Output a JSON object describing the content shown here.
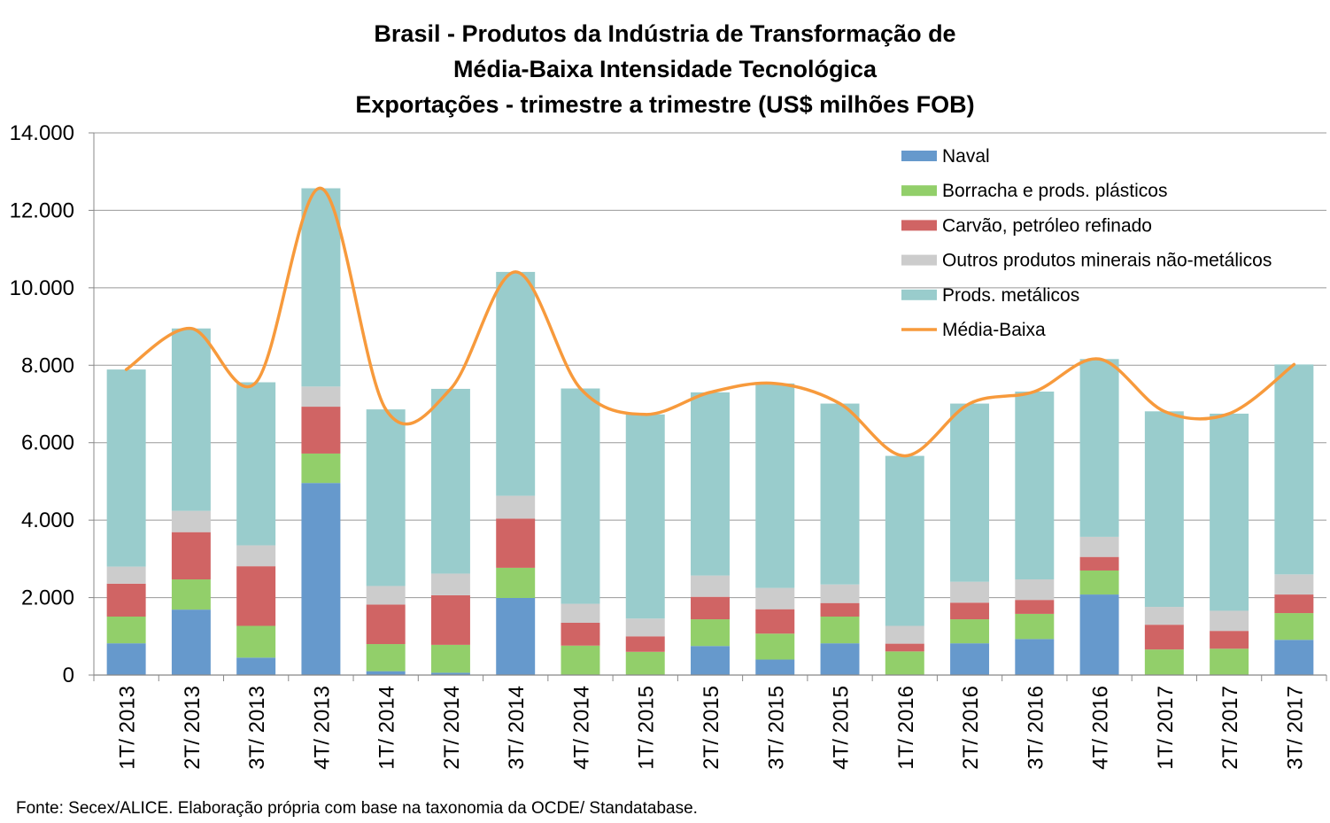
{
  "title_lines": [
    "Brasil - Produtos da Indústria de Transformação de",
    "Média-Baixa Intensidade Tecnológica",
    "Exportações - trimestre a trimestre (US$ milhões FOB)"
  ],
  "source": "Fonte: Secex/ALICE. Elaboração própria com base na taxonomia da OCDE/ Standatabase.",
  "colors": {
    "naval": "#6699cc",
    "borracha": "#92cf6a",
    "carvao": "#d06464",
    "outros": "#cccccc",
    "metalicos": "#99cccc",
    "media_baixa": "#f79a3c",
    "grid": "#999999"
  },
  "chart_data": {
    "type": "bar",
    "stacked": true,
    "categories": [
      "1T/ 2013",
      "2T/ 2013",
      "3T/ 2013",
      "4T/ 2013",
      "1T/ 2014",
      "2T/ 2014",
      "3T/ 2014",
      "4T/ 2014",
      "1T/ 2015",
      "2T/ 2015",
      "3T/ 2015",
      "4T/ 2015",
      "1T/ 2016",
      "2T/ 2016",
      "3T/ 2016",
      "4T/ 2016",
      "1T/ 2017",
      "2T/ 2017",
      "3T/ 2017"
    ],
    "ylim": [
      0,
      14000
    ],
    "yticks": [
      0,
      2000,
      4000,
      6000,
      8000,
      10000,
      12000,
      14000
    ],
    "ytick_labels": [
      "0",
      "2.000",
      "4.000",
      "6.000",
      "8.000",
      "10.000",
      "12.000",
      "14.000"
    ],
    "grid": true,
    "legend_position": "top-right",
    "series": [
      {
        "name": "Naval",
        "color_key": "naval",
        "values": [
          820,
          1690,
          450,
          4960,
          100,
          60,
          1990,
          0,
          0,
          750,
          400,
          820,
          0,
          820,
          930,
          2080,
          0,
          0,
          910
        ]
      },
      {
        "name": "Borracha e prods. plásticos",
        "color_key": "borracha",
        "values": [
          690,
          780,
          820,
          760,
          700,
          720,
          780,
          760,
          600,
          690,
          670,
          690,
          610,
          620,
          650,
          620,
          660,
          680,
          690
        ]
      },
      {
        "name": "Carvão, petróleo refinado",
        "color_key": "carvao",
        "values": [
          850,
          1220,
          1540,
          1210,
          1020,
          1280,
          1270,
          590,
          400,
          580,
          630,
          350,
          200,
          430,
          360,
          350,
          640,
          460,
          480
        ]
      },
      {
        "name": "Outros produtos minerais não-metálicos",
        "color_key": "outros",
        "values": [
          440,
          550,
          540,
          520,
          480,
          560,
          590,
          490,
          460,
          550,
          550,
          480,
          460,
          540,
          530,
          520,
          460,
          520,
          520
        ]
      },
      {
        "name": "Prods. metálicos",
        "color_key": "metalicos",
        "values": [
          5090,
          4710,
          4210,
          5120,
          4560,
          4770,
          5780,
          5560,
          5270,
          4730,
          5280,
          4670,
          4390,
          4600,
          4850,
          4590,
          5050,
          5090,
          5420
        ]
      },
      {
        "name": "Média-Baixa",
        "color_key": "media_baixa",
        "type": "line",
        "smooth": true,
        "values": [
          7890,
          8950,
          7560,
          12570,
          6860,
          7390,
          10410,
          7400,
          6730,
          7300,
          7530,
          7010,
          5660,
          7010,
          7320,
          8160,
          6810,
          6750,
          8020
        ]
      }
    ]
  }
}
